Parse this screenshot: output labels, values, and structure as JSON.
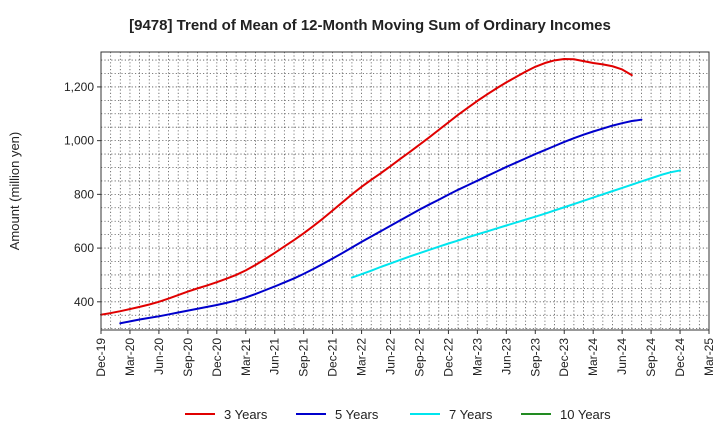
{
  "chart_data": {
    "type": "line",
    "title": "[9478]  Trend of Mean of 12-Month Moving Sum of Ordinary Incomes",
    "xlabel": "",
    "ylabel": "Amount (million yen)",
    "ylim": [
      295,
      1330
    ],
    "yticks": [
      400,
      600,
      800,
      1000,
      1200
    ],
    "ytick_labels": [
      "400",
      "600",
      "800",
      "1,000",
      "1,200"
    ],
    "x_start": "Dec-19",
    "x_end": "Mar-25",
    "xtick_labels": [
      "Dec-19",
      "Mar-20",
      "Jun-20",
      "Sep-20",
      "Dec-20",
      "Mar-21",
      "Jun-21",
      "Sep-21",
      "Dec-21",
      "Mar-22",
      "Jun-22",
      "Sep-22",
      "Dec-22",
      "Mar-23",
      "Jun-23",
      "Sep-23",
      "Dec-23",
      "Mar-24",
      "Jun-24",
      "Sep-24",
      "Dec-24",
      "Mar-25"
    ],
    "grid": true,
    "legend_position": "bottom",
    "series": [
      {
        "name": "3 Years",
        "color": "#e00000",
        "start": "Dec-19",
        "values": [
          352,
          358,
          365,
          373,
          381,
          390,
          400,
          412,
          425,
          438,
          450,
          461,
          473,
          486,
          500,
          517,
          537,
          559,
          582,
          606,
          630,
          655,
          682,
          710,
          740,
          770,
          800,
          828,
          854,
          879,
          905,
          932,
          958,
          985,
          1012,
          1040,
          1068,
          1096,
          1122,
          1148,
          1172,
          1195,
          1217,
          1237,
          1257,
          1275,
          1289,
          1299,
          1304,
          1303,
          1296,
          1289,
          1284,
          1277,
          1265,
          1244
        ]
      },
      {
        "name": "5 Years",
        "color": "#0000cc",
        "start": "Feb-20",
        "values": [
          320,
          327,
          334,
          340,
          346,
          353,
          360,
          367,
          374,
          381,
          388,
          396,
          405,
          416,
          429,
          443,
          457,
          472,
          487,
          504,
          522,
          541,
          561,
          581,
          602,
          623,
          643,
          663,
          683,
          703,
          723,
          743,
          762,
          780,
          799,
          817,
          834,
          851,
          868,
          885,
          902,
          918,
          934,
          950,
          965,
          980,
          995,
          1009,
          1022,
          1034,
          1045,
          1056,
          1065,
          1073,
          1078
        ]
      },
      {
        "name": "7 Years",
        "color": "#00e5ee",
        "start": "Feb-22",
        "values": [
          490,
          503,
          516,
          530,
          543,
          556,
          569,
          581,
          593,
          605,
          617,
          628,
          640,
          651,
          662,
          673,
          684,
          695,
          706,
          717,
          728,
          740,
          752,
          764,
          776,
          788,
          800,
          812,
          824,
          836,
          848,
          860,
          872,
          882,
          889
        ]
      },
      {
        "name": "10 Years",
        "color": "#228b22",
        "start": "Dec-24",
        "values": []
      }
    ]
  }
}
